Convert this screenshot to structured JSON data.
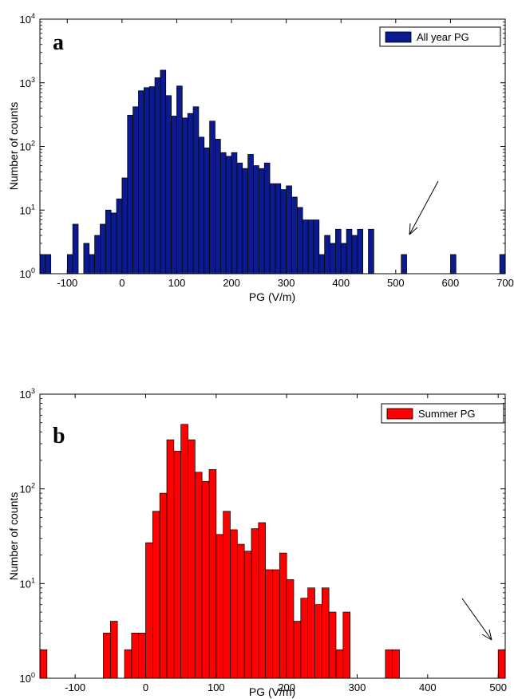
{
  "chart_data": [
    {
      "type": "bar",
      "panel_label": "a",
      "legend": "All year PG",
      "color": "#0b1a8c",
      "xlabel": "PG (V/m)",
      "ylabel": "Number of counts",
      "xlim": [
        -150,
        700
      ],
      "ylim": [
        1,
        10000
      ],
      "yscale": "log",
      "bin_width": 10,
      "xticks": [
        "-100",
        "0",
        "100",
        "200",
        "300",
        "400",
        "500",
        "600",
        "700"
      ],
      "ytick_exponents": [
        "0",
        "1",
        "2",
        "3",
        "4"
      ],
      "annotation": "arrow pointing to PG ≈ 510",
      "bins": [
        {
          "x": -145,
          "count": 2
        },
        {
          "x": -135,
          "count": 2
        },
        {
          "x": -95,
          "count": 2
        },
        {
          "x": -85,
          "count": 6
        },
        {
          "x": -65,
          "count": 3
        },
        {
          "x": -55,
          "count": 2
        },
        {
          "x": -45,
          "count": 4
        },
        {
          "x": -35,
          "count": 6
        },
        {
          "x": -25,
          "count": 10
        },
        {
          "x": -15,
          "count": 9
        },
        {
          "x": -5,
          "count": 15
        },
        {
          "x": 5,
          "count": 32
        },
        {
          "x": 15,
          "count": 310
        },
        {
          "x": 25,
          "count": 420
        },
        {
          "x": 35,
          "count": 750
        },
        {
          "x": 45,
          "count": 840
        },
        {
          "x": 55,
          "count": 870
        },
        {
          "x": 65,
          "count": 1200
        },
        {
          "x": 75,
          "count": 1580
        },
        {
          "x": 85,
          "count": 630
        },
        {
          "x": 95,
          "count": 300
        },
        {
          "x": 105,
          "count": 890
        },
        {
          "x": 115,
          "count": 280
        },
        {
          "x": 125,
          "count": 330
        },
        {
          "x": 135,
          "count": 420
        },
        {
          "x": 145,
          "count": 140
        },
        {
          "x": 155,
          "count": 95
        },
        {
          "x": 165,
          "count": 250
        },
        {
          "x": 175,
          "count": 130
        },
        {
          "x": 185,
          "count": 80
        },
        {
          "x": 195,
          "count": 70
        },
        {
          "x": 205,
          "count": 80
        },
        {
          "x": 215,
          "count": 55
        },
        {
          "x": 225,
          "count": 45
        },
        {
          "x": 235,
          "count": 75
        },
        {
          "x": 245,
          "count": 50
        },
        {
          "x": 255,
          "count": 45
        },
        {
          "x": 265,
          "count": 55
        },
        {
          "x": 275,
          "count": 26
        },
        {
          "x": 285,
          "count": 26
        },
        {
          "x": 295,
          "count": 21
        },
        {
          "x": 305,
          "count": 24
        },
        {
          "x": 315,
          "count": 16
        },
        {
          "x": 325,
          "count": 11
        },
        {
          "x": 335,
          "count": 7
        },
        {
          "x": 345,
          "count": 7
        },
        {
          "x": 355,
          "count": 7
        },
        {
          "x": 365,
          "count": 2
        },
        {
          "x": 375,
          "count": 4
        },
        {
          "x": 385,
          "count": 3
        },
        {
          "x": 395,
          "count": 5
        },
        {
          "x": 405,
          "count": 3
        },
        {
          "x": 415,
          "count": 5
        },
        {
          "x": 425,
          "count": 4
        },
        {
          "x": 435,
          "count": 5
        },
        {
          "x": 445,
          "count": 1
        },
        {
          "x": 455,
          "count": 5
        },
        {
          "x": 515,
          "count": 2
        },
        {
          "x": 605,
          "count": 2
        },
        {
          "x": 695,
          "count": 2
        }
      ]
    },
    {
      "type": "bar",
      "panel_label": "b",
      "legend": "Summer PG",
      "color": "#ff0000",
      "xlabel": "PG (V/m)",
      "ylabel": "Number of counts",
      "xlim": [
        -150,
        510
      ],
      "ylim": [
        1,
        1000
      ],
      "yscale": "log",
      "bin_width": 10,
      "xticks": [
        "-100",
        "0",
        "100",
        "200",
        "300",
        "400",
        "500"
      ],
      "ytick_exponents": [
        "0",
        "1",
        "2",
        "3"
      ],
      "annotation": "arrow pointing to PG ≈ 505",
      "bins": [
        {
          "x": -145,
          "count": 2
        },
        {
          "x": -55,
          "count": 3
        },
        {
          "x": -45,
          "count": 4
        },
        {
          "x": -25,
          "count": 2
        },
        {
          "x": -15,
          "count": 3
        },
        {
          "x": -5,
          "count": 3
        },
        {
          "x": 5,
          "count": 27
        },
        {
          "x": 15,
          "count": 58
        },
        {
          "x": 25,
          "count": 90
        },
        {
          "x": 35,
          "count": 330
        },
        {
          "x": 45,
          "count": 250
        },
        {
          "x": 55,
          "count": 480
        },
        {
          "x": 65,
          "count": 330
        },
        {
          "x": 75,
          "count": 150
        },
        {
          "x": 85,
          "count": 120
        },
        {
          "x": 95,
          "count": 160
        },
        {
          "x": 105,
          "count": 33
        },
        {
          "x": 115,
          "count": 58
        },
        {
          "x": 125,
          "count": 37
        },
        {
          "x": 135,
          "count": 26
        },
        {
          "x": 145,
          "count": 22
        },
        {
          "x": 155,
          "count": 38
        },
        {
          "x": 165,
          "count": 44
        },
        {
          "x": 175,
          "count": 14
        },
        {
          "x": 185,
          "count": 14
        },
        {
          "x": 195,
          "count": 21
        },
        {
          "x": 205,
          "count": 11
        },
        {
          "x": 215,
          "count": 4
        },
        {
          "x": 225,
          "count": 7
        },
        {
          "x": 235,
          "count": 9
        },
        {
          "x": 245,
          "count": 6
        },
        {
          "x": 255,
          "count": 9
        },
        {
          "x": 265,
          "count": 5
        },
        {
          "x": 275,
          "count": 2
        },
        {
          "x": 285,
          "count": 5
        },
        {
          "x": 345,
          "count": 2
        },
        {
          "x": 355,
          "count": 2
        },
        {
          "x": 505,
          "count": 2
        }
      ]
    }
  ]
}
